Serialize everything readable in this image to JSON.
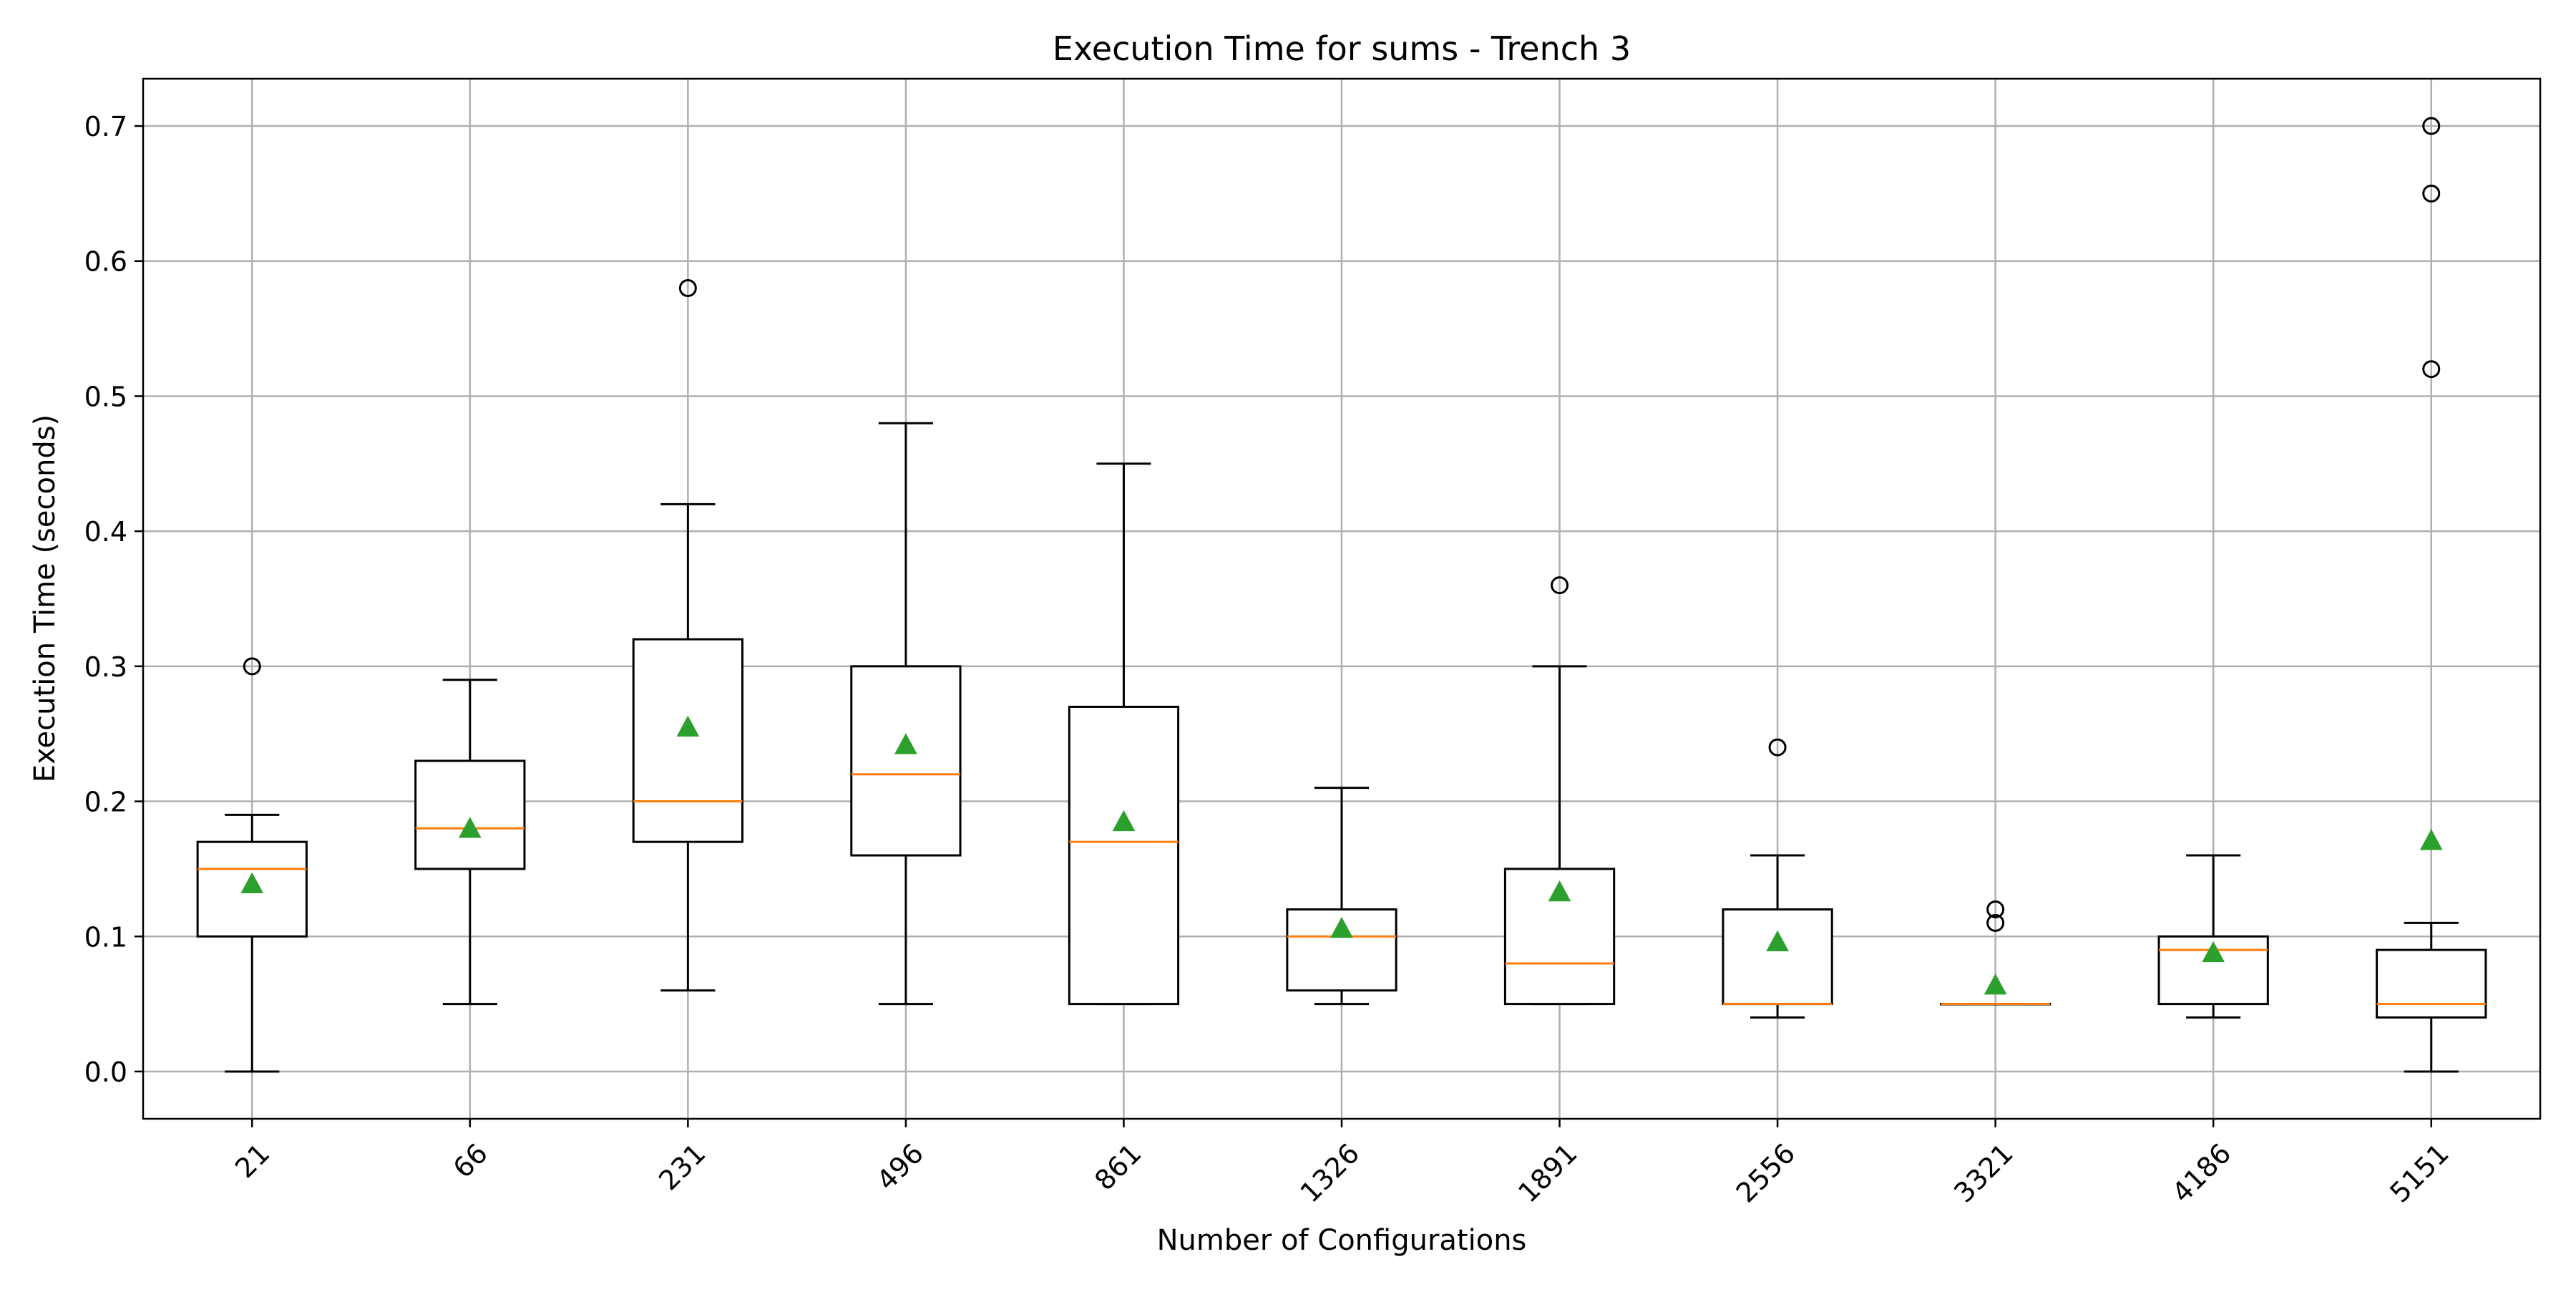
{
  "chart_data": {
    "type": "box",
    "title": "Execution Time for sums - Trench 3",
    "xlabel": "Number of Configurations",
    "ylabel": "Execution Time (seconds)",
    "ylim": [
      -0.035,
      0.735
    ],
    "yticks": [
      0.0,
      0.1,
      0.2,
      0.3,
      0.4,
      0.5,
      0.6,
      0.7
    ],
    "ytick_labels": [
      "0.0",
      "0.1",
      "0.2",
      "0.3",
      "0.4",
      "0.5",
      "0.6",
      "0.7"
    ],
    "grid": true,
    "categories": [
      "21",
      "66",
      "231",
      "496",
      "861",
      "1326",
      "1891",
      "2556",
      "3321",
      "4186",
      "5151"
    ],
    "boxes": [
      {
        "whisker_low": 0.0,
        "q1": 0.1,
        "median": 0.15,
        "q3": 0.17,
        "whisker_high": 0.19,
        "mean": 0.139,
        "outliers": [
          0.3
        ]
      },
      {
        "whisker_low": 0.05,
        "q1": 0.15,
        "median": 0.18,
        "q3": 0.23,
        "whisker_high": 0.29,
        "mean": 0.18,
        "outliers": []
      },
      {
        "whisker_low": 0.06,
        "q1": 0.17,
        "median": 0.2,
        "q3": 0.32,
        "whisker_high": 0.42,
        "mean": 0.255,
        "outliers": [
          0.58
        ]
      },
      {
        "whisker_low": 0.05,
        "q1": 0.16,
        "median": 0.22,
        "q3": 0.3,
        "whisker_high": 0.48,
        "mean": 0.242,
        "outliers": []
      },
      {
        "whisker_low": 0.05,
        "q1": 0.05,
        "median": 0.17,
        "q3": 0.27,
        "whisker_high": 0.45,
        "mean": 0.185,
        "outliers": []
      },
      {
        "whisker_low": 0.05,
        "q1": 0.06,
        "median": 0.1,
        "q3": 0.12,
        "whisker_high": 0.21,
        "mean": 0.106,
        "outliers": []
      },
      {
        "whisker_low": 0.05,
        "q1": 0.05,
        "median": 0.08,
        "q3": 0.15,
        "whisker_high": 0.3,
        "mean": 0.133,
        "outliers": [
          0.36
        ]
      },
      {
        "whisker_low": 0.04,
        "q1": 0.05,
        "median": 0.05,
        "q3": 0.12,
        "whisker_high": 0.16,
        "mean": 0.096,
        "outliers": [
          0.24
        ]
      },
      {
        "whisker_low": 0.05,
        "q1": 0.05,
        "median": 0.05,
        "q3": 0.05,
        "whisker_high": 0.05,
        "mean": 0.064,
        "outliers": [
          0.11,
          0.12
        ]
      },
      {
        "whisker_low": 0.04,
        "q1": 0.05,
        "median": 0.09,
        "q3": 0.1,
        "whisker_high": 0.16,
        "mean": 0.088,
        "outliers": []
      },
      {
        "whisker_low": 0.0,
        "q1": 0.04,
        "median": 0.05,
        "q3": 0.09,
        "whisker_high": 0.11,
        "mean": 0.171,
        "outliers": [
          0.52,
          0.65,
          0.7
        ]
      }
    ],
    "colors": {
      "box": "#000000",
      "median": "#ff7f0e",
      "mean": "#2ca02c",
      "outlier": "#000000",
      "grid": "#b0b0b0"
    }
  }
}
